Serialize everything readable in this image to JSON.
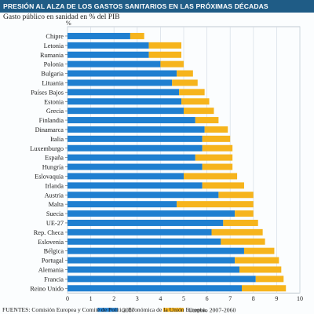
{
  "header": {
    "title": "PRESIÓN AL ALZA DE LOS GASTOS SANITARIOS EN LAS PRÓXIMAS DÉCADAS",
    "subtitle": "Gasto público en sanidad en % del PIB"
  },
  "footer": {
    "sources": "FUENTES: Comisión Europea y Comité de Política Económica de la Unión Europea."
  },
  "colors": {
    "series_2007": "#1f7fd0",
    "series_change": "#f6b41c",
    "header_bg": "#1f5c86",
    "grid": "#d5dde6"
  },
  "chart_data": {
    "type": "bar",
    "orientation": "horizontal",
    "stacked": true,
    "ylabel": "%",
    "xlim": [
      0,
      10
    ],
    "xticks": [
      0,
      1,
      2,
      3,
      4,
      5,
      6,
      7,
      8,
      9,
      10
    ],
    "grid": true,
    "legend_position": "bottom",
    "categories": [
      "Chipre",
      "Letonia",
      "Rumania",
      "Polonia",
      "Bulgaria",
      "Lituania",
      "Países Bajos",
      "Estonia",
      "Grecia",
      "Finlandia",
      "Dinamarca",
      "Italia",
      "Luxemburgo",
      "España",
      "Hungría",
      "Eslovaquia",
      "Irlanda",
      "Austria",
      "Malta",
      "Suecia",
      "UE-27",
      "Rep. Checa",
      "Eslovenia",
      "Bélgica",
      "Portugal",
      "Alemania",
      "Francia",
      "Reino Unido"
    ],
    "series": [
      {
        "name": "2007",
        "values": [
          2.7,
          3.5,
          3.5,
          4.0,
          4.7,
          4.5,
          4.8,
          4.9,
          5.0,
          5.5,
          5.9,
          5.8,
          5.8,
          5.5,
          5.8,
          5.0,
          5.8,
          6.5,
          4.7,
          7.2,
          6.7,
          6.2,
          6.6,
          7.6,
          7.2,
          7.4,
          8.1,
          7.5
        ]
      },
      {
        "name": "Cambio 2007-2060",
        "values": [
          0.6,
          1.4,
          1.4,
          1.0,
          0.7,
          1.1,
          1.1,
          1.2,
          1.3,
          1.0,
          1.0,
          1.2,
          1.3,
          1.6,
          1.3,
          2.3,
          1.8,
          1.5,
          3.3,
          0.8,
          1.5,
          2.2,
          1.9,
          1.3,
          1.9,
          1.8,
          1.2,
          1.9
        ]
      }
    ]
  }
}
